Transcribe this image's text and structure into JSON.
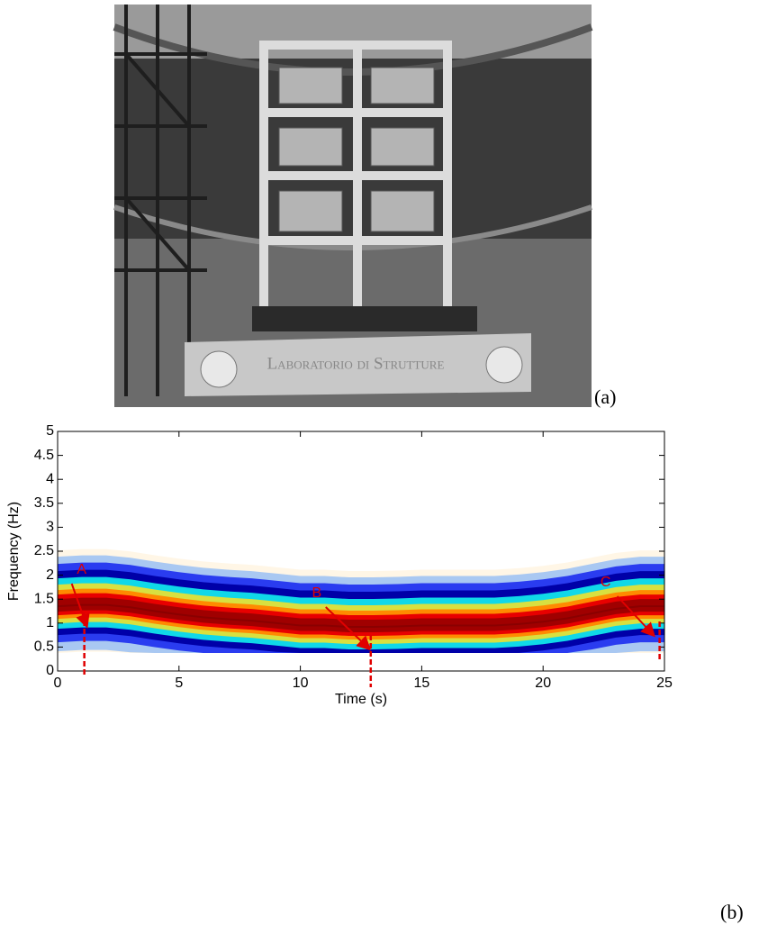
{
  "figure": {
    "label_a": "(a)",
    "label_b": "(b)"
  },
  "photo": {
    "sign": "Laboratorio di Strutture"
  },
  "chart_data": {
    "type": "spectrogram",
    "xlabel": "Time (s)",
    "ylabel": "Frequency (Hz)",
    "x": [
      0,
      1,
      2,
      3,
      4,
      5,
      6,
      7,
      8,
      9,
      10,
      11,
      12,
      13,
      14,
      15,
      16,
      17,
      18,
      19,
      20,
      21,
      22,
      23,
      24,
      25
    ],
    "values": [
      1.35,
      1.38,
      1.38,
      1.33,
      1.25,
      1.18,
      1.12,
      1.08,
      1.05,
      1.0,
      0.95,
      0.95,
      0.92,
      0.92,
      0.93,
      0.95,
      0.95,
      0.95,
      0.95,
      0.98,
      1.03,
      1.1,
      1.2,
      1.3,
      1.35,
      1.35
    ],
    "xlim": [
      0,
      25
    ],
    "xticks": [
      0,
      5,
      10,
      15,
      20,
      25
    ],
    "ylim": [
      0,
      5
    ],
    "yticks": [
      0,
      0.5,
      1,
      1.5,
      2,
      2.5,
      3,
      3.5,
      4,
      4.5,
      5
    ],
    "annotations": [
      {
        "label": "A",
        "x": 1.1
      },
      {
        "label": "B",
        "x": 12.9
      },
      {
        "label": "C",
        "x": 24.8
      }
    ]
  }
}
